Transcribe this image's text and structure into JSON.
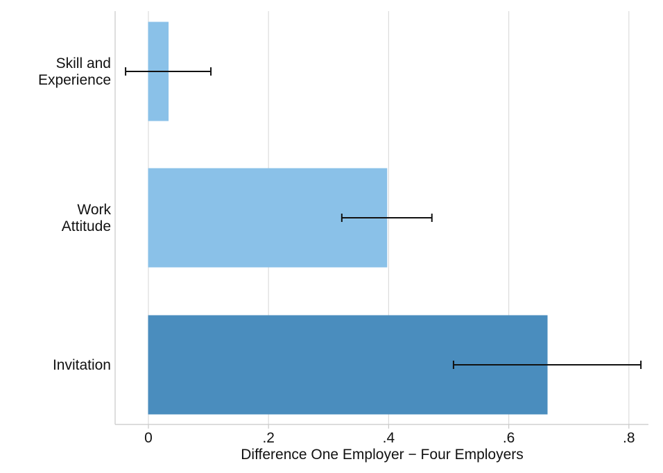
{
  "chart_data": {
    "type": "bar",
    "orientation": "horizontal",
    "title": "",
    "xlabel": "Difference One Employer − Four Employers",
    "ylabel": "",
    "xlim": [
      -0.055,
      0.835
    ],
    "xticks": [
      0,
      0.2,
      0.4,
      0.6,
      0.8
    ],
    "xtick_labels": [
      "0",
      ".2",
      ".4",
      ".6",
      ".8"
    ],
    "grid": "vertical",
    "categories": [
      {
        "label_lines": [
          "Skill and",
          "Experience"
        ],
        "value": 0.033,
        "ci": [
          -0.038,
          0.104
        ],
        "color": "#8ac1e8"
      },
      {
        "label_lines": [
          "Work",
          "Attitude"
        ],
        "value": 0.397,
        "ci": [
          0.322,
          0.472
        ],
        "color": "#8ac1e8"
      },
      {
        "label_lines": [
          "Invitation"
        ],
        "value": 0.664,
        "ci": [
          0.508,
          0.82
        ],
        "color": "#4a8dbe"
      }
    ]
  }
}
